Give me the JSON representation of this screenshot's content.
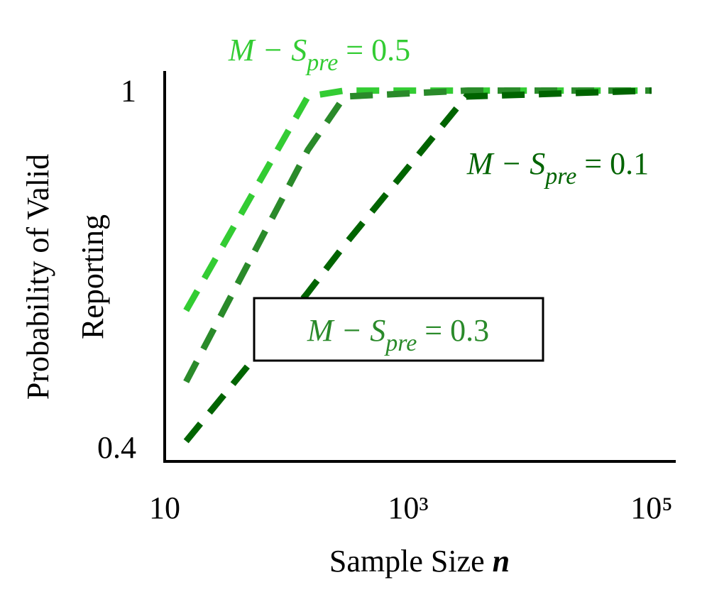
{
  "chart_data": {
    "type": "line",
    "xlabel": [
      "Sample Size",
      "n"
    ],
    "ylabel": [
      "Probability of Valid",
      "Reporting"
    ],
    "x": [
      15,
      150,
      300,
      3000,
      100000
    ],
    "series": [
      {
        "name": "0.5",
        "color": "#33cc33",
        "values": [
          0.63,
          0.99,
          1.0,
          1.0,
          1.0
        ]
      },
      {
        "name": "0.3",
        "color": "#2a8a2a",
        "values": [
          0.51,
          0.9,
          0.99,
          1.0,
          1.0
        ]
      },
      {
        "name": "0.1",
        "color": "#006400",
        "values": [
          0.41,
          0.66,
          0.74,
          0.99,
          1.0
        ]
      }
    ],
    "xscale": "log",
    "xlim": [
      10,
      158000
    ],
    "xticks": [
      {
        "value": 10,
        "label": "10"
      },
      {
        "value": 1000,
        "label": "10³"
      },
      {
        "value": 100000,
        "label": "10⁵"
      }
    ],
    "ylim": [
      0.376,
      1.033
    ],
    "yticks": [
      0.4,
      1
    ],
    "annotations": [
      {
        "main": "M − S",
        "sub": "pre",
        "tail": " = 0.5",
        "color": "#33cc33",
        "boxed": false
      },
      {
        "main": "M − S",
        "sub": "pre",
        "tail": " = 0.1",
        "color": "#006400",
        "boxed": false
      },
      {
        "main": "M − S",
        "sub": "pre",
        "tail": " = 0.3",
        "color": "#2a8a2a",
        "boxed": true
      }
    ]
  }
}
